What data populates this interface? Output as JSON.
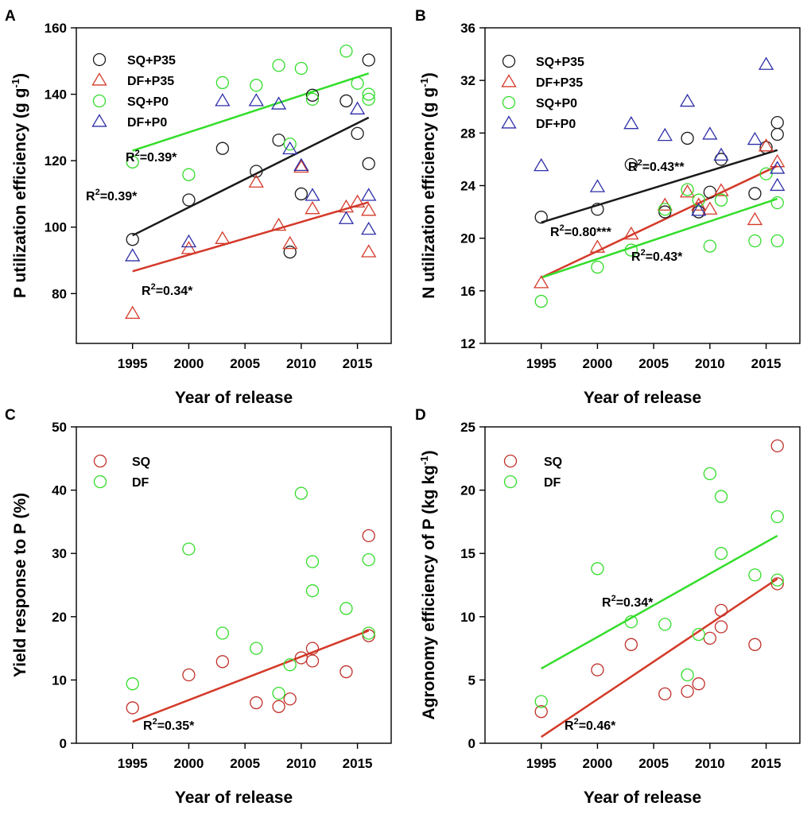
{
  "colors": {
    "black": "#1a1a1a",
    "red": "#d43a2a",
    "green": "#33dd2a",
    "blue": "#2e2ea8",
    "darkred": "#c0302a"
  },
  "chart_data": [
    {
      "panel": "A",
      "type": "scatter",
      "xlabel": "Year of release",
      "ylabel": "P utilization efficiency (g g-1)",
      "ylabel_parts": {
        "main": "P utilization efficiency (g g",
        "sup": "-1",
        "end": ")"
      },
      "xlim": [
        1990,
        2018
      ],
      "ylim": [
        65,
        160
      ],
      "xticks": [
        1995,
        2000,
        2005,
        2010,
        2015
      ],
      "yticks": [
        80,
        100,
        120,
        140,
        160
      ],
      "legend": "top-left",
      "series": [
        {
          "name": "SQ+P35",
          "marker": "circle",
          "color": "black",
          "points": [
            [
              1995,
              96.3
            ],
            [
              2000,
              108.2
            ],
            [
              2003,
              123.7
            ],
            [
              2006,
              116.8
            ],
            [
              2008,
              126.2
            ],
            [
              2009,
              92.5
            ],
            [
              2010,
              110
            ],
            [
              2011,
              139.7
            ],
            [
              2014,
              138
            ],
            [
              2015,
              128.2
            ],
            [
              2016,
              150.3
            ],
            [
              2016,
              119.1
            ]
          ],
          "fit": [
            [
              1995,
              97.5
            ],
            [
              2016,
              133
            ]
          ],
          "r2_label": {
            "main": "R",
            "sup": "2",
            "rest": "=0.39*"
          }
        },
        {
          "name": "DF+P35",
          "marker": "triangle",
          "color": "red",
          "points": [
            [
              1995,
              74
            ],
            [
              2000,
              93.5
            ],
            [
              2003,
              96.5
            ],
            [
              2006,
              113.5
            ],
            [
              2008,
              100.5
            ],
            [
              2009,
              95
            ],
            [
              2010,
              118
            ],
            [
              2011,
              105.5
            ],
            [
              2014,
              106
            ],
            [
              2015,
              107.5
            ],
            [
              2016,
              105
            ],
            [
              2016,
              92.5
            ]
          ],
          "fit": [
            [
              1995,
              86.7
            ],
            [
              2016,
              107.5
            ]
          ],
          "r2_label": {
            "main": "R",
            "sup": "2",
            "rest": "=0.34*"
          }
        },
        {
          "name": "SQ+P0",
          "marker": "circle",
          "color": "green",
          "points": [
            [
              1995,
              119.6
            ],
            [
              2000,
              115.8
            ],
            [
              2003,
              143.5
            ],
            [
              2006,
              142.7
            ],
            [
              2008,
              148.7
            ],
            [
              2009,
              125
            ],
            [
              2010,
              147.8
            ],
            [
              2011,
              138.5
            ],
            [
              2014,
              153
            ],
            [
              2015,
              143.3
            ],
            [
              2016,
              140
            ],
            [
              2016,
              138.5
            ]
          ],
          "fit": [
            [
              1995,
              123
            ],
            [
              2016,
              146.3
            ]
          ],
          "r2_label": {
            "main": "R",
            "sup": "2",
            "rest": "=0.39*"
          }
        },
        {
          "name": "DF+P0",
          "marker": "triangle",
          "color": "blue",
          "points": [
            [
              1995,
              91.3
            ],
            [
              2000,
              95.5
            ],
            [
              2003,
              138
            ],
            [
              2006,
              138
            ],
            [
              2008,
              137
            ],
            [
              2009,
              123.5
            ],
            [
              2010,
              118.5
            ],
            [
              2011,
              109.5
            ],
            [
              2014,
              102.5
            ],
            [
              2015,
              135.5
            ],
            [
              2016,
              109.5
            ],
            [
              2016,
              99.3
            ]
          ]
        }
      ]
    },
    {
      "panel": "B",
      "type": "scatter",
      "xlabel": "Year of release",
      "ylabel": "N utilization efficiency (g g-1)",
      "ylabel_parts": {
        "main": "N utilization efficiency (g g",
        "sup": "-1",
        "end": ")"
      },
      "xlim": [
        1990,
        2018
      ],
      "ylim": [
        12,
        36
      ],
      "xticks": [
        1995,
        2000,
        2005,
        2010,
        2015
      ],
      "yticks": [
        12,
        16,
        20,
        24,
        28,
        32,
        36
      ],
      "legend": "top-left",
      "series": [
        {
          "name": "SQ+P35",
          "marker": "circle",
          "color": "black",
          "points": [
            [
              1995,
              21.6
            ],
            [
              2000,
              22.2
            ],
            [
              2003,
              25.6
            ],
            [
              2006,
              22
            ],
            [
              2008,
              27.6
            ],
            [
              2009,
              22
            ],
            [
              2010,
              23.5
            ],
            [
              2011,
              26
            ],
            [
              2014,
              23.4
            ],
            [
              2015,
              26.9
            ],
            [
              2016,
              28.8
            ],
            [
              2016,
              27.9
            ]
          ],
          "fit": [
            [
              1995,
              21.2
            ],
            [
              2016,
              26.7
            ]
          ],
          "r2_label": {
            "main": "R",
            "sup": "2",
            "rest": "=0.43**"
          }
        },
        {
          "name": "DF+P35",
          "marker": "triangle",
          "color": "red",
          "points": [
            [
              1995,
              16.6
            ],
            [
              2000,
              19.3
            ],
            [
              2003,
              20.3
            ],
            [
              2006,
              22.5
            ],
            [
              2008,
              23.5
            ],
            [
              2009,
              22.5
            ],
            [
              2010,
              22.2
            ],
            [
              2011,
              23.6
            ],
            [
              2014,
              21.4
            ],
            [
              2015,
              27
            ],
            [
              2016,
              25.8
            ]
          ],
          "fit": [
            [
              1995,
              17
            ],
            [
              2016,
              25.5
            ]
          ],
          "r2_label": {
            "main": "R",
            "sup": "2",
            "rest": "=0.80***"
          }
        },
        {
          "name": "SQ+P0",
          "marker": "circle",
          "color": "green",
          "points": [
            [
              1995,
              15.2
            ],
            [
              2000,
              17.8
            ],
            [
              2003,
              19.1
            ],
            [
              2006,
              22.2
            ],
            [
              2008,
              23.7
            ],
            [
              2009,
              22.9
            ],
            [
              2010,
              19.4
            ],
            [
              2011,
              22.9
            ],
            [
              2014,
              19.8
            ],
            [
              2015,
              24.9
            ],
            [
              2016,
              22.7
            ],
            [
              2016,
              19.8
            ]
          ],
          "fit": [
            [
              1995,
              17
            ],
            [
              2016,
              23
            ]
          ],
          "r2_label": {
            "main": "R",
            "sup": "2",
            "rest": "=0.43*"
          }
        },
        {
          "name": "DF+P0",
          "marker": "triangle",
          "color": "blue",
          "points": [
            [
              1995,
              25.5
            ],
            [
              2000,
              23.9
            ],
            [
              2003,
              28.7
            ],
            [
              2006,
              27.8
            ],
            [
              2008,
              30.4
            ],
            [
              2009,
              22.1
            ],
            [
              2010,
              27.9
            ],
            [
              2011,
              26.3
            ],
            [
              2014,
              27.5
            ],
            [
              2015,
              33.2
            ],
            [
              2016,
              25.3
            ],
            [
              2016,
              24
            ]
          ]
        }
      ]
    },
    {
      "panel": "C",
      "type": "scatter",
      "xlabel": "Year of release",
      "ylabel": "Yield response to P (%)",
      "ylabel_parts": {
        "main": "Yield response to P (%)",
        "sup": "",
        "end": ""
      },
      "xlim": [
        1990,
        2018
      ],
      "ylim": [
        0,
        50
      ],
      "xticks": [
        1995,
        2000,
        2005,
        2010,
        2015
      ],
      "yticks": [
        0,
        10,
        20,
        30,
        40,
        50
      ],
      "legend": "top-left",
      "series": [
        {
          "name": "SQ",
          "marker": "circle",
          "color": "darkred",
          "points": [
            [
              1995,
              5.6
            ],
            [
              2000,
              10.8
            ],
            [
              2003,
              12.9
            ],
            [
              2006,
              6.4
            ],
            [
              2008,
              5.8
            ],
            [
              2009,
              7
            ],
            [
              2010,
              13.5
            ],
            [
              2011,
              15
            ],
            [
              2011,
              13
            ],
            [
              2014,
              11.3
            ],
            [
              2016,
              32.8
            ],
            [
              2016,
              17
            ]
          ],
          "fit": [
            [
              1995,
              3.4
            ],
            [
              2016,
              17.8
            ]
          ],
          "fit_color": "red",
          "r2_label": {
            "main": "R",
            "sup": "2",
            "rest": "=0.35*"
          }
        },
        {
          "name": "DF",
          "marker": "circle",
          "color": "green",
          "points": [
            [
              1995,
              9.4
            ],
            [
              2000,
              30.7
            ],
            [
              2003,
              17.4
            ],
            [
              2006,
              15
            ],
            [
              2008,
              7.9
            ],
            [
              2009,
              12.4
            ],
            [
              2010,
              39.5
            ],
            [
              2011,
              28.7
            ],
            [
              2011,
              24.1
            ],
            [
              2014,
              21.3
            ],
            [
              2016,
              29
            ],
            [
              2016,
              17.4
            ]
          ]
        }
      ]
    },
    {
      "panel": "D",
      "type": "scatter",
      "xlabel": "Year of release",
      "ylabel": "Agronomy efficiency of P (kg kg-1)",
      "ylabel_parts": {
        "main": "Agronomy efficiency of P (kg kg",
        "sup": "-1",
        "end": ")"
      },
      "xlim": [
        1990,
        2018
      ],
      "ylim": [
        0,
        25
      ],
      "xticks": [
        1995,
        2000,
        2005,
        2010,
        2015
      ],
      "yticks": [
        0,
        5,
        10,
        15,
        20,
        25
      ],
      "legend": "top-left",
      "series": [
        {
          "name": "SQ",
          "marker": "circle",
          "color": "darkred",
          "points": [
            [
              1995,
              2.5
            ],
            [
              2000,
              5.8
            ],
            [
              2003,
              7.8
            ],
            [
              2006,
              3.9
            ],
            [
              2008,
              4.1
            ],
            [
              2009,
              4.7
            ],
            [
              2010,
              8.3
            ],
            [
              2011,
              10.5
            ],
            [
              2011,
              9.2
            ],
            [
              2014,
              7.8
            ],
            [
              2016,
              23.5
            ],
            [
              2016,
              12.6
            ]
          ],
          "fit": [
            [
              1995,
              0.5
            ],
            [
              2016,
              13
            ]
          ],
          "fit_color": "red",
          "r2_label": {
            "main": "R",
            "sup": "2",
            "rest": "=0.46*"
          }
        },
        {
          "name": "DF",
          "marker": "circle",
          "color": "green",
          "points": [
            [
              1995,
              3.3
            ],
            [
              2000,
              13.8
            ],
            [
              2003,
              9.6
            ],
            [
              2006,
              9.4
            ],
            [
              2008,
              5.4
            ],
            [
              2009,
              8.6
            ],
            [
              2010,
              21.3
            ],
            [
              2011,
              19.5
            ],
            [
              2011,
              15
            ],
            [
              2014,
              13.3
            ],
            [
              2016,
              17.9
            ],
            [
              2016,
              12.9
            ]
          ],
          "fit": [
            [
              1995,
              5.9
            ],
            [
              2016,
              16.4
            ]
          ],
          "r2_label": {
            "main": "R",
            "sup": "2",
            "rest": "=0.34*"
          }
        }
      ]
    }
  ]
}
